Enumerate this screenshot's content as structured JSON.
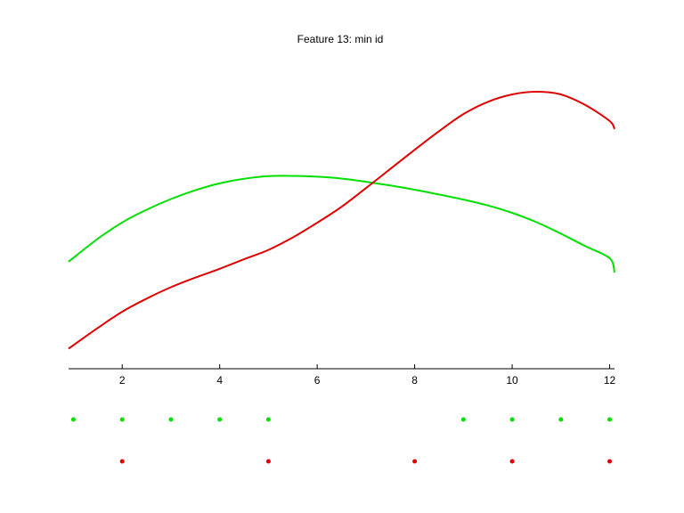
{
  "chart_data": {
    "type": "line",
    "title": "Feature 13: min id",
    "xlabel": "",
    "ylabel": "",
    "xlim": [
      0.9,
      12.1
    ],
    "ylim": [
      0,
      1
    ],
    "x_ticks": [
      2,
      4,
      6,
      8,
      10,
      12
    ],
    "grid": false,
    "legend": "none",
    "series": [
      {
        "color": "#00e000",
        "x": [
          0.9,
          1.5,
          2,
          2.5,
          3,
          3.5,
          4,
          4.5,
          5,
          5.5,
          6,
          6.5,
          7,
          7.5,
          8,
          8.5,
          9,
          9.5,
          10,
          10.5,
          11,
          11.5,
          12,
          12.1
        ],
        "y": [
          0.362,
          0.448,
          0.509,
          0.557,
          0.597,
          0.63,
          0.656,
          0.673,
          0.683,
          0.684,
          0.681,
          0.674,
          0.662,
          0.648,
          0.632,
          0.614,
          0.595,
          0.573,
          0.545,
          0.51,
          0.467,
          0.42,
          0.375,
          0.321
        ]
      },
      {
        "color": "#e00000",
        "x": [
          0.9,
          1.5,
          2,
          2.5,
          3,
          3.5,
          4,
          4.5,
          5,
          5.5,
          6,
          6.5,
          7,
          7.5,
          8,
          8.5,
          9,
          9.5,
          10,
          10.5,
          11,
          11.5,
          12,
          12.1
        ],
        "y": [
          0.035,
          0.113,
          0.174,
          0.223,
          0.266,
          0.302,
          0.335,
          0.371,
          0.406,
          0.453,
          0.508,
          0.568,
          0.638,
          0.71,
          0.782,
          0.852,
          0.916,
          0.962,
          0.99,
          1.0,
          0.99,
          0.95,
          0.89,
          0.86
        ]
      }
    ],
    "markers": [
      {
        "color": "#00e000",
        "x": [
          1,
          2,
          3,
          4,
          5,
          9,
          10,
          11,
          12
        ]
      },
      {
        "color": "#e00000",
        "x": [
          2,
          5,
          8,
          10,
          12
        ]
      }
    ]
  }
}
